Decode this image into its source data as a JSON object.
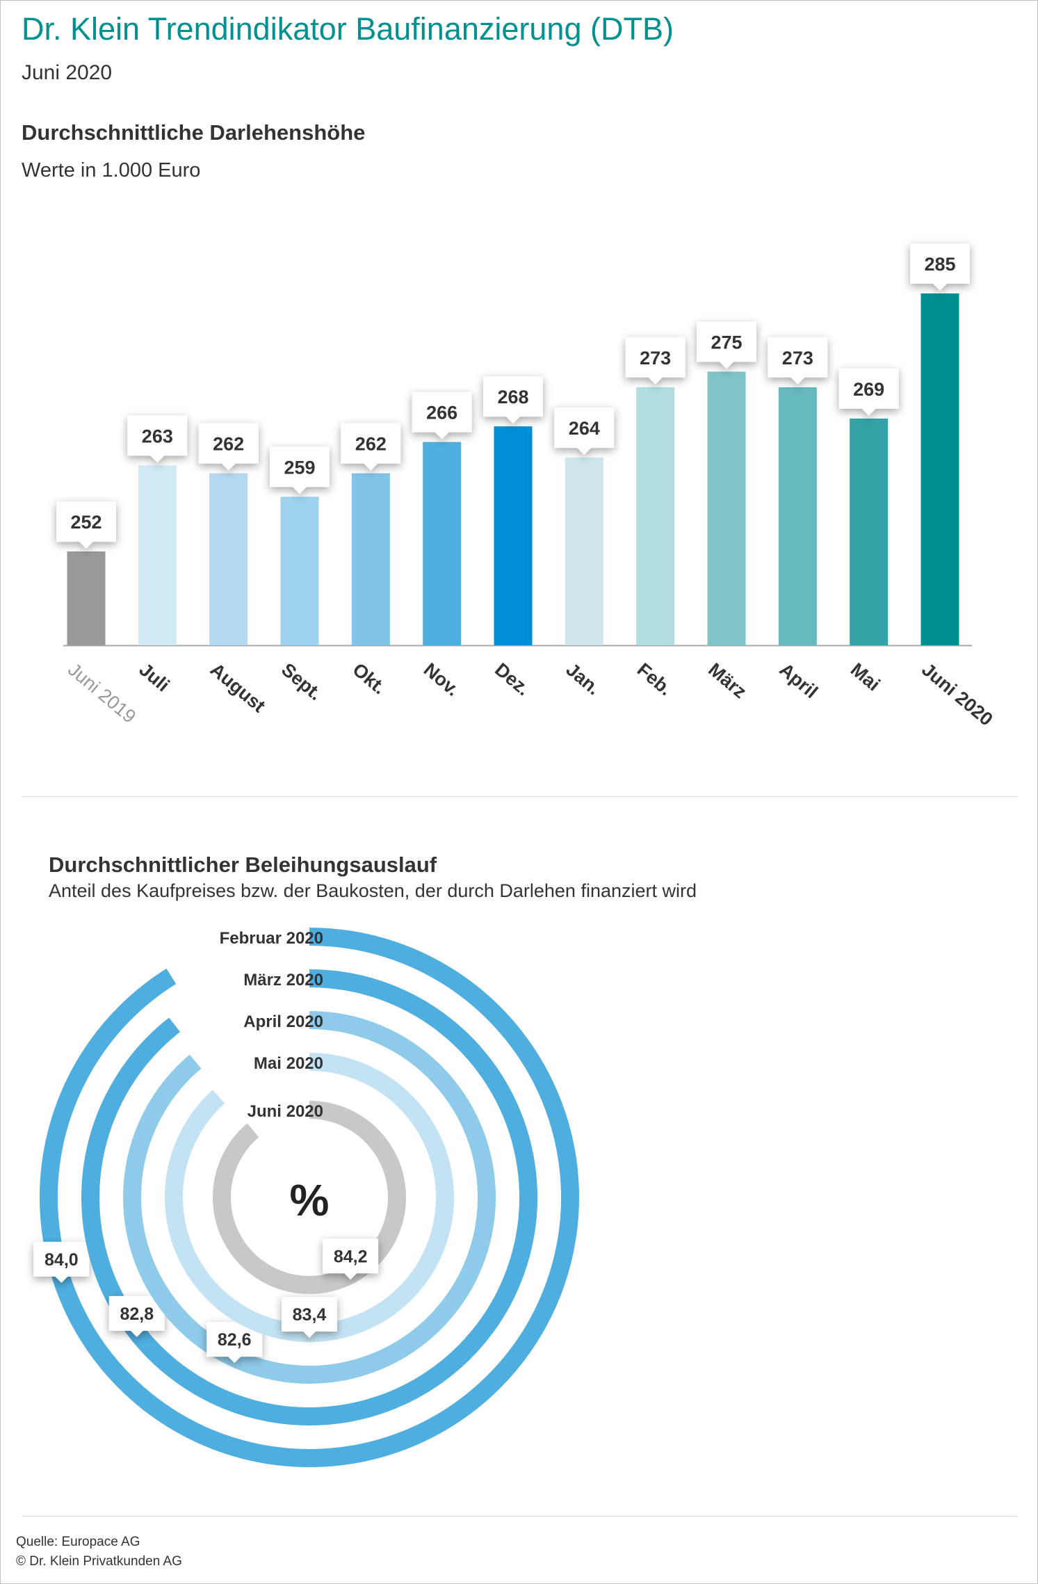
{
  "header": {
    "title": "Dr. Klein Trendindikator Baufinanzierung (DTB)",
    "date": "Juni 2020"
  },
  "loan_section": {
    "title": "Durchschnittliche Darlehenshöhe",
    "subtitle": "Werte in 1.000 Euro"
  },
  "ltv_section": {
    "title": "Durchschnittlicher Beleihungsauslauf",
    "subtitle": "Anteil des Kaufpreises bzw. der Baukosten, der durch Darlehen finanziert wird",
    "center_symbol": "%"
  },
  "footer": {
    "source": "Quelle: Europace AG",
    "copyright": "© Dr. Klein Privatkunden AG"
  },
  "chart_data": [
    {
      "type": "bar",
      "title": "Durchschnittliche Darlehenshöhe",
      "subtitle": "Werte in 1.000 Euro",
      "categories": [
        "Juni 2019",
        "Juli",
        "August",
        "Sept.",
        "Okt.",
        "Nov.",
        "Dez.",
        "Jan.",
        "Feb.",
        "März",
        "April",
        "Mai",
        "Juni 2020"
      ],
      "values": [
        252,
        263,
        262,
        259,
        262,
        266,
        268,
        264,
        273,
        275,
        273,
        269,
        285
      ],
      "colors": [
        "#999999",
        "#d1ebf6",
        "#b3d9f2",
        "#9ed3ed",
        "#80c5e8",
        "#4fb0e0",
        "#008fd6",
        "#cde7ea",
        "#b2dedf",
        "#80c4c8",
        "#66b9bd",
        "#33a3a8",
        "#00908f"
      ],
      "category_label_colors": [
        "#999999",
        "#333333",
        "#333333",
        "#333333",
        "#333333",
        "#333333",
        "#333333",
        "#333333",
        "#333333",
        "#333333",
        "#333333",
        "#333333",
        "#333333"
      ],
      "ylim": [
        240,
        290
      ],
      "data_labels": true,
      "grid": false
    },
    {
      "type": "radial-bar",
      "title": "Durchschnittlicher Beleihungsauslauf",
      "unit": "%",
      "series": [
        {
          "name": "Februar 2020",
          "value": 84.0,
          "label": "84,0",
          "color": "#4eaedf"
        },
        {
          "name": "März 2020",
          "value": 82.8,
          "label": "82,8",
          "color": "#4eaedf"
        },
        {
          "name": "April 2020",
          "value": 82.6,
          "label": "82,6",
          "color": "#8ecbea"
        },
        {
          "name": "Mai 2020",
          "value": 83.4,
          "label": "83,4",
          "color": "#c3e3f4"
        },
        {
          "name": "Juni 2020",
          "value": 84.2,
          "label": "84,2",
          "color": "#c8c8c8"
        }
      ]
    }
  ]
}
